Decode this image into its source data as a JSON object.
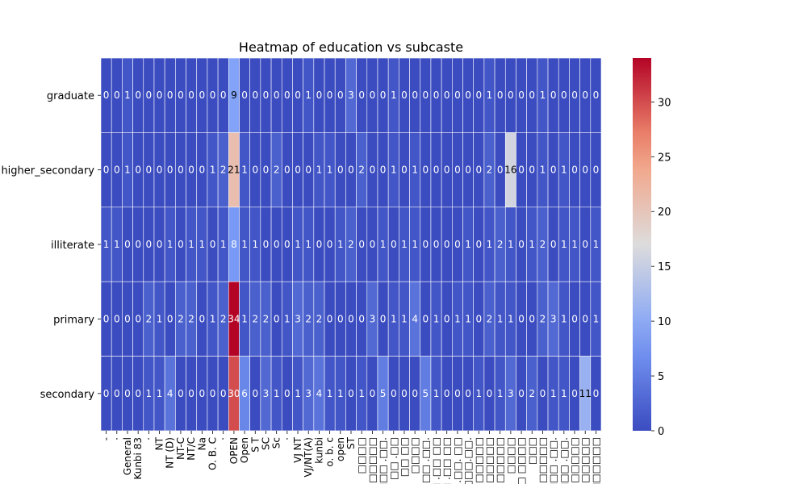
{
  "chart_data": {
    "type": "heatmap",
    "title": "Heatmap of education vs subcaste",
    "xlabel": "",
    "ylabel": "",
    "colormap": "coolwarm",
    "vmin": 0,
    "vmax": 34,
    "colorbar_ticks": [
      0,
      5,
      10,
      15,
      20,
      25,
      30
    ],
    "annotated": true,
    "rows": [
      "graduate",
      "higher_secondary",
      "illiterate",
      "primary",
      "secondary"
    ],
    "columns": [
      "-",
      "·",
      "General",
      "Kunbi 83",
      "·",
      "NT",
      "NT (D)",
      "NT-C",
      "NT/C",
      "Na",
      "O. B. C",
      "·",
      "OPEN",
      "Open",
      "S T",
      "SC",
      "Sc",
      "·",
      "VJ NT",
      "VJ/NT(A)",
      "kunbi",
      "o. b. c",
      "open",
      "ST",
      "□□□□",
      "□□□□□",
      "□□□ .□□.",
      "□□ .□□",
      "□□ □□",
      "□□□□",
      ". □□ .□□.",
      "□ .□□ □□",
      "□ .□□ □□",
      "□ .□□. □□",
      "□.□□□.□□.",
      "□□□□□",
      "□ □□□□□",
      "□ □□□□□",
      "□□□□",
      "□ □□□□",
      "□□□",
      "□□□□□",
      "□□□ .□□.",
      "□□□ .□□.",
      "□ □□□□□",
      "□ □□□□□",
      "□□□□□□"
    ],
    "values": [
      [
        0,
        0,
        1,
        0,
        0,
        0,
        0,
        0,
        0,
        0,
        0,
        0,
        9,
        0,
        0,
        0,
        0,
        0,
        0,
        1,
        0,
        0,
        0,
        3,
        0,
        0,
        0,
        1,
        0,
        0,
        0,
        0,
        0,
        0,
        0,
        0,
        1,
        0,
        0,
        0,
        0,
        1,
        0,
        0,
        0,
        0,
        0
      ],
      [
        0,
        0,
        1,
        0,
        0,
        0,
        0,
        0,
        0,
        0,
        1,
        2,
        21,
        1,
        0,
        0,
        2,
        0,
        0,
        0,
        1,
        1,
        0,
        0,
        2,
        0,
        0,
        1,
        0,
        1,
        0,
        0,
        0,
        0,
        0,
        0,
        2,
        0,
        16,
        0,
        0,
        1,
        0,
        1,
        0,
        0,
        0
      ],
      [
        1,
        1,
        0,
        0,
        0,
        0,
        1,
        0,
        1,
        1,
        0,
        1,
        8,
        1,
        1,
        0,
        0,
        0,
        1,
        1,
        0,
        0,
        1,
        2,
        0,
        0,
        1,
        0,
        1,
        1,
        0,
        0,
        0,
        0,
        1,
        0,
        1,
        2,
        1,
        0,
        1,
        2,
        0,
        1,
        1,
        0,
        1
      ],
      [
        0,
        0,
        0,
        0,
        2,
        1,
        0,
        2,
        2,
        0,
        1,
        2,
        34,
        1,
        2,
        2,
        0,
        1,
        3,
        2,
        2,
        0,
        0,
        0,
        0,
        3,
        0,
        1,
        1,
        4,
        0,
        1,
        0,
        1,
        1,
        0,
        2,
        1,
        1,
        0,
        0,
        2,
        3,
        1,
        0,
        0,
        1
      ],
      [
        0,
        0,
        0,
        0,
        1,
        1,
        4,
        0,
        0,
        0,
        0,
        0,
        30,
        6,
        0,
        3,
        1,
        0,
        1,
        3,
        4,
        1,
        1,
        0,
        1,
        0,
        5,
        0,
        0,
        0,
        5,
        1,
        0,
        0,
        0,
        1,
        0,
        1,
        3,
        0,
        2,
        0,
        1,
        1,
        0,
        11,
        0
      ]
    ]
  }
}
